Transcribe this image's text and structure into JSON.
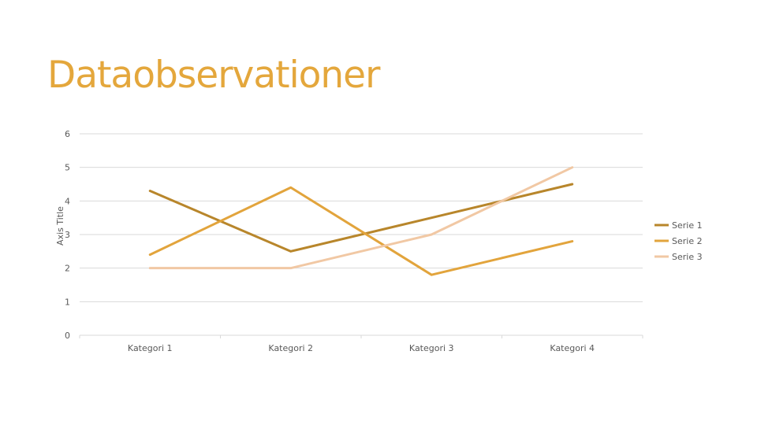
{
  "slide": {
    "title": "Dataobservationer"
  },
  "chart_data": {
    "type": "line",
    "categories": [
      "Kategori 1",
      "Kategori 2",
      "Kategori 3",
      "Kategori 4"
    ],
    "series": [
      {
        "name": "Serie 1",
        "values": [
          4.3,
          2.5,
          3.5,
          4.5
        ],
        "color": "#B8862B"
      },
      {
        "name": "Serie 2",
        "values": [
          2.4,
          4.4,
          1.8,
          2.8
        ],
        "color": "#E2A43C"
      },
      {
        "name": "Serie 3",
        "values": [
          2.0,
          2.0,
          3.0,
          5.0
        ],
        "color": "#F1C8A4"
      }
    ],
    "title": "",
    "xlabel": "",
    "ylabel": "Axis Title",
    "ylim": [
      0,
      6
    ],
    "yticks": [
      "0",
      "1",
      "2",
      "3",
      "4",
      "5",
      "6"
    ],
    "grid": true,
    "legend_position": "right"
  }
}
